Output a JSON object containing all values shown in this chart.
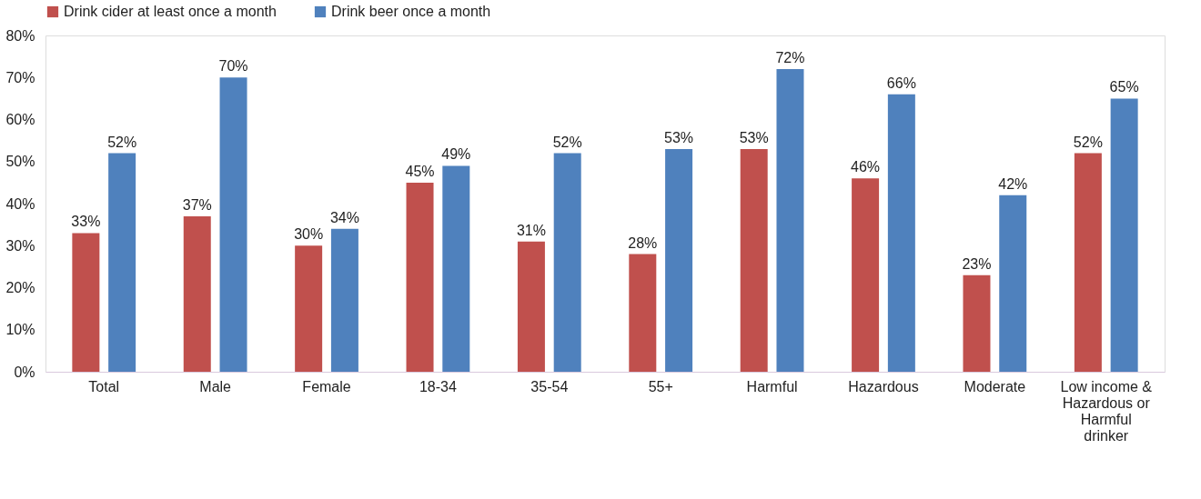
{
  "chart_data": {
    "type": "bar",
    "categories": [
      "Total",
      "Male",
      "Female",
      "18-34",
      "35-54",
      "55+",
      "Harmful",
      "Hazardous",
      "Moderate",
      "Low income & Hazardous or Harmful drinker"
    ],
    "series": [
      {
        "name": "Drink cider at least once a month",
        "color": "#c0504d",
        "values": [
          33,
          37,
          30,
          45,
          31,
          28,
          53,
          46,
          23,
          52
        ],
        "value_labels": [
          "33%",
          "37%",
          "30%",
          "45%",
          "31%",
          "28%",
          "53%",
          "46%",
          "23%",
          "52%"
        ]
      },
      {
        "name": "Drink beer once a month",
        "color": "#4f81bd",
        "values": [
          52,
          70,
          34,
          49,
          52,
          53,
          72,
          66,
          42,
          65
        ],
        "value_labels": [
          "52%",
          "70%",
          "34%",
          "49%",
          "52%",
          "53%",
          "72%",
          "66%",
          "42%",
          "65%"
        ]
      }
    ],
    "ylim": [
      0,
      80
    ],
    "yticks": [
      {
        "value": 0,
        "label": "0%"
      },
      {
        "value": 10,
        "label": "10%"
      },
      {
        "value": 20,
        "label": "20%"
      },
      {
        "value": 30,
        "label": "30%"
      },
      {
        "value": 40,
        "label": "40%"
      },
      {
        "value": 50,
        "label": "50%"
      },
      {
        "value": 60,
        "label": "60%"
      },
      {
        "value": 70,
        "label": "70%"
      },
      {
        "value": 80,
        "label": "80%"
      }
    ],
    "grid": false,
    "legend": "top"
  }
}
